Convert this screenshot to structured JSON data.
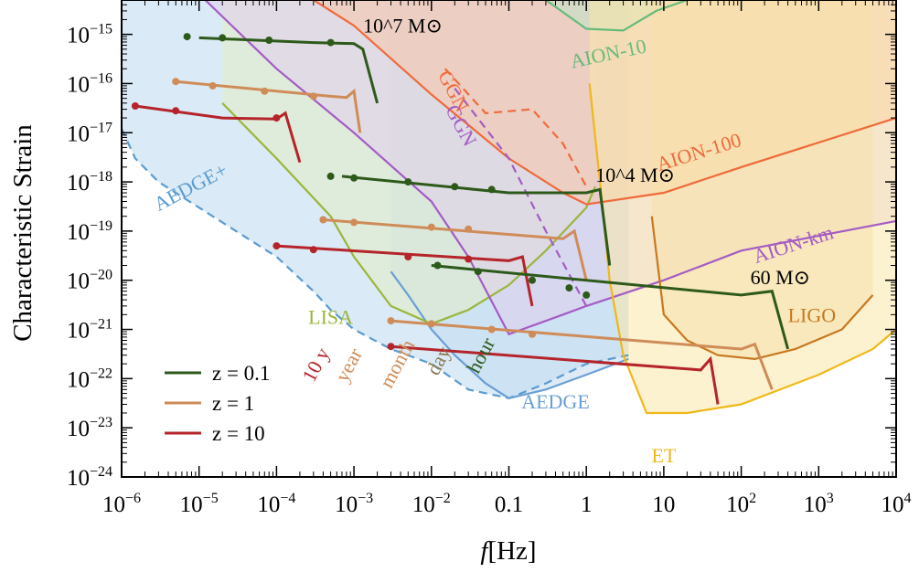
{
  "chart_data": {
    "type": "line",
    "xlabel": "f[Hz]",
    "ylabel": "Characteristic Strain",
    "x_scale": "log",
    "y_scale": "log",
    "xlim": [
      1e-06,
      10000
    ],
    "ylim": [
      1e-24,
      5e-15
    ],
    "grid": false,
    "legend_position": "bottom-left",
    "x_ticks": [
      "10^-6",
      "10^-5",
      "10^-4",
      "10^-3",
      "10^-2",
      "0.1",
      "1",
      "10",
      "10^2",
      "10^3",
      "10^4"
    ],
    "y_ticks": [
      "10^-24",
      "10^-23",
      "10^-22",
      "10^-21",
      "10^-20",
      "10^-19",
      "10^-18",
      "10^-17",
      "10^-16",
      "10^-15"
    ],
    "detectors": [
      {
        "name": "AEDGE+",
        "color": "#5b9bd0",
        "fill": "#bcd8ee",
        "dashed": true,
        "points": [
          [
            1e-06,
            1.2e-17
          ],
          [
            1.5e-06,
            3e-18
          ],
          [
            3e-06,
            1e-18
          ],
          [
            1e-05,
            3e-19
          ],
          [
            3e-05,
            1e-19
          ],
          [
            0.0001,
            3e-20
          ],
          [
            0.0003,
            6e-21
          ],
          [
            0.0005,
            2.5e-21
          ],
          [
            0.001,
            1e-21
          ],
          [
            0.003,
            4e-22
          ],
          [
            0.01,
            2e-22
          ],
          [
            0.03,
            6e-23
          ],
          [
            0.1,
            4e-23
          ],
          [
            0.3,
            8e-23
          ],
          [
            1,
            2e-22
          ],
          [
            3.5,
            3e-22
          ]
        ]
      },
      {
        "name": "AEDGE",
        "color": "#6a9fd4",
        "fill": "#c3daf0",
        "dashed": false,
        "points": [
          [
            0.003,
            1.5e-20
          ],
          [
            0.005,
            5e-21
          ],
          [
            0.01,
            1e-21
          ],
          [
            0.02,
            3e-22
          ],
          [
            0.05,
            8e-23
          ],
          [
            0.1,
            4e-23
          ],
          [
            0.3,
            6e-23
          ],
          [
            1,
            1.2e-22
          ],
          [
            3.5,
            2.5e-22
          ]
        ]
      },
      {
        "name": "LISA",
        "color": "#9ab63a",
        "fill": "#e3ecc4",
        "dashed": false,
        "points": [
          [
            2e-05,
            4e-17
          ],
          [
            0.0001,
            3e-18
          ],
          [
            0.0005,
            2e-19
          ],
          [
            0.001,
            3e-20
          ],
          [
            0.003,
            3e-21
          ],
          [
            0.01,
            1.3e-21
          ],
          [
            0.03,
            2.5e-21
          ],
          [
            0.1,
            8e-21
          ],
          [
            0.3,
            4e-20
          ],
          [
            1,
            3e-19
          ],
          [
            1.3,
            8e-19
          ]
        ]
      },
      {
        "name": "AION-km",
        "color": "#a45cc4",
        "fill": "#e2cdec",
        "dashed": false,
        "points": [
          [
            1.2e-05,
            5e-15
          ],
          [
            0.0001,
            2e-16
          ],
          [
            0.001,
            1e-17
          ],
          [
            0.01,
            4e-19
          ],
          [
            0.03,
            3e-20
          ],
          [
            0.1,
            8e-22
          ],
          [
            0.5,
            2e-21
          ],
          [
            1,
            3e-21
          ],
          [
            10,
            1e-20
          ],
          [
            100,
            4e-20
          ],
          [
            10000,
            1.6e-19
          ]
        ]
      },
      {
        "name": "AION-100",
        "color": "#ef6a3a",
        "fill": "#f7c4a8",
        "dashed": false,
        "points": [
          [
            0.0003,
            5e-15
          ],
          [
            0.001,
            1.5e-15
          ],
          [
            0.01,
            6e-17
          ],
          [
            0.1,
            3e-18
          ],
          [
            0.5,
            6e-19
          ],
          [
            1,
            3.5e-19
          ],
          [
            10,
            6e-19
          ],
          [
            100,
            2e-18
          ],
          [
            10000,
            2e-17
          ]
        ]
      },
      {
        "name": "AION-10",
        "color": "#66bb7a",
        "fill": "#bfe4c7",
        "dashed": false,
        "points": [
          [
            0.3,
            5e-15
          ],
          [
            1,
            1.3e-15
          ],
          [
            3,
            1.2e-15
          ],
          [
            8,
            3e-15
          ],
          [
            20,
            5e-15
          ]
        ]
      },
      {
        "name": "GGN",
        "color": "#ef6a3a",
        "dashed": true,
        "points": [
          [
            0.015,
            2e-16
          ],
          [
            0.05,
            2.5e-17
          ],
          [
            0.2,
            3e-17
          ],
          [
            0.5,
            6e-18
          ],
          [
            1,
            8e-19
          ]
        ]
      },
      {
        "name": "GGN",
        "color": "#a45cc4",
        "dashed": true,
        "points": [
          [
            0.02,
            8e-17
          ],
          [
            0.1,
            3e-18
          ],
          [
            0.3,
            1e-19
          ],
          [
            1,
            3e-21
          ]
        ]
      },
      {
        "name": "LIGO",
        "color": "#c87820",
        "fill": "#f0d7ad",
        "dashed": false,
        "points": [
          [
            7,
            2e-19
          ],
          [
            10,
            2e-21
          ],
          [
            20,
            6e-22
          ],
          [
            50,
            3e-22
          ],
          [
            150,
            2.5e-22
          ],
          [
            500,
            4e-22
          ],
          [
            2000,
            1e-21
          ],
          [
            5000,
            5e-21
          ]
        ]
      },
      {
        "name": "ET",
        "color": "#f0b818",
        "fill": "#fbe7a8",
        "dashed": false,
        "points": [
          [
            1.1,
            1e-16
          ],
          [
            1.5,
            1e-18
          ],
          [
            2,
            1e-20
          ],
          [
            3,
            3e-22
          ],
          [
            6,
            2e-23
          ],
          [
            20,
            2e-23
          ],
          [
            100,
            3e-23
          ],
          [
            1000,
            1.2e-22
          ],
          [
            5000,
            4e-22
          ],
          [
            10000,
            1e-21
          ]
        ]
      }
    ],
    "binaries": [
      {
        "mass_label": "10^7 M⊙",
        "redshift": "0.1",
        "color": "#2d5a1b",
        "points": [
          [
            1e-05,
            8.5e-16
          ],
          [
            0.0003,
            6.8e-16
          ],
          [
            0.001,
            6.5e-16
          ],
          [
            0.0013,
            5e-16
          ],
          [
            0.002,
            4e-17
          ]
        ],
        "markers": [
          [
            7e-06,
            9e-16
          ],
          [
            2e-05,
            8.5e-16
          ],
          [
            8e-05,
            7.6e-16
          ],
          [
            0.0005,
            6.8e-16
          ]
        ]
      },
      {
        "redshift": "1",
        "color": "#cf8c58",
        "points": [
          [
            5e-06,
            1.1e-16
          ],
          [
            0.0005,
            5.5e-17
          ],
          [
            0.0008,
            5.2e-17
          ],
          [
            0.001,
            7e-17
          ],
          [
            0.0012,
            1e-17
          ]
        ],
        "markers": [
          [
            5e-06,
            1.1e-16
          ],
          [
            1.5e-05,
            9e-17
          ],
          [
            7e-05,
            7e-17
          ],
          [
            0.0003,
            5.5e-17
          ]
        ]
      },
      {
        "redshift": "10",
        "color": "#b5242a",
        "points": [
          [
            1.5e-06,
            3.5e-17
          ],
          [
            2e-05,
            2e-17
          ],
          [
            0.0001,
            1.9e-17
          ],
          [
            0.00013,
            2.5e-17
          ],
          [
            0.0002,
            2.5e-18
          ]
        ],
        "markers": [
          [
            1.5e-06,
            3.5e-17
          ],
          [
            5e-06,
            2.8e-17
          ],
          [
            0.0001,
            2e-17
          ]
        ]
      },
      {
        "mass_label": "10^4 M⊙",
        "redshift": "0.1",
        "color": "#2d5a1b",
        "points": [
          [
            0.0007,
            1.3e-18
          ],
          [
            0.1,
            6e-19
          ],
          [
            1,
            6e-19
          ],
          [
            1.5,
            7e-19
          ],
          [
            2,
            2e-20
          ]
        ],
        "markers": [
          [
            0.0005,
            1.3e-18
          ],
          [
            0.001,
            1.2e-18
          ],
          [
            0.005,
            1e-18
          ],
          [
            0.02,
            8e-19
          ],
          [
            0.06,
            7e-19
          ]
        ]
      },
      {
        "redshift": "1",
        "color": "#cf8c58",
        "points": [
          [
            0.0004,
            1.7e-19
          ],
          [
            0.5,
            7e-20
          ],
          [
            0.7,
            1e-19
          ],
          [
            1,
            1e-20
          ]
        ],
        "markers": [
          [
            0.0004,
            1.7e-19
          ],
          [
            0.001,
            1.5e-19
          ],
          [
            0.01,
            1.2e-19
          ],
          [
            0.03,
            1.1e-19
          ]
        ]
      },
      {
        "redshift": "10",
        "color": "#b5242a",
        "points": [
          [
            0.0001,
            5e-20
          ],
          [
            0.1,
            2.5e-20
          ],
          [
            0.15,
            3e-20
          ],
          [
            0.2,
            3e-21
          ]
        ],
        "markers": [
          [
            0.0001,
            5e-20
          ],
          [
            0.0003,
            4.2e-20
          ],
          [
            0.005,
            3e-20
          ],
          [
            0.03,
            2.7e-20
          ]
        ]
      },
      {
        "mass_label": "60 M⊙",
        "redshift": "0.1",
        "color": "#2d5a1b",
        "points": [
          [
            0.01,
            2e-20
          ],
          [
            100,
            5e-21
          ],
          [
            250,
            6e-21
          ],
          [
            400,
            4e-22
          ]
        ],
        "markers": [
          [
            0.012,
            2e-20
          ],
          [
            0.04,
            1.5e-20
          ],
          [
            0.2,
            1e-20
          ],
          [
            0.6,
            7e-21
          ],
          [
            1,
            5e-21
          ]
        ]
      },
      {
        "redshift": "1",
        "color": "#cf8c58",
        "points": [
          [
            0.003,
            1.5e-21
          ],
          [
            100,
            4e-22
          ],
          [
            150,
            5e-22
          ],
          [
            250,
            6e-23
          ]
        ],
        "markers": [
          [
            0.003,
            1.5e-21
          ],
          [
            0.01,
            1.3e-21
          ],
          [
            0.06,
            1e-21
          ],
          [
            0.2,
            8e-22
          ]
        ]
      },
      {
        "redshift": "10",
        "color": "#b5242a",
        "points": [
          [
            0.003,
            4.5e-22
          ],
          [
            30,
            1.5e-22
          ],
          [
            40,
            2.5e-22
          ],
          [
            50,
            3e-23
          ]
        ],
        "markers": [
          [
            0.003,
            4.5e-22
          ]
        ]
      }
    ],
    "timescale_labels": [
      "10 y",
      "year",
      "month",
      "day",
      "hour"
    ],
    "legend": [
      {
        "label": "z = 0.1",
        "color": "#2d5a1b"
      },
      {
        "label": "z = 1",
        "color": "#cf8c58"
      },
      {
        "label": "z = 10",
        "color": "#b5242a"
      }
    ]
  }
}
